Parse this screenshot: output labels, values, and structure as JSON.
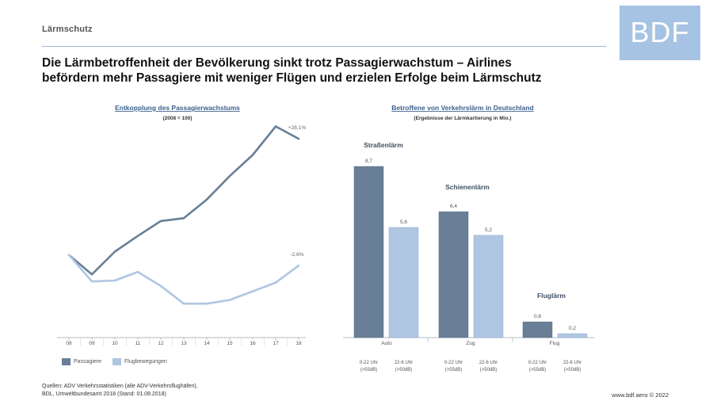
{
  "header": {
    "section_label": "Lärmschutz",
    "logo_text": "BDF",
    "headline_line1": "Die Lärmbetroffenheit der Bevölkerung sinkt trotz Passagierwachstum – Airlines",
    "headline_line2": "befördern mehr Passagiere mit weniger Flügen und erzielen Erfolge beim Lärmschutz"
  },
  "colors": {
    "passagiere": "#687f97",
    "flugbewegungen": "#afc6e2",
    "bar_dark": "#687f97",
    "bar_light": "#afc6e2",
    "title_link": "#3b5f8a",
    "axis": "#9aa3ad",
    "logo_bg": "#a7c3e4"
  },
  "chart_data": [
    {
      "type": "line",
      "title": "Entkopplung des Passagierwachstums",
      "subtitle": "(2008 = 100)",
      "categories": [
        "08",
        "09",
        "10",
        "11",
        "12",
        "13",
        "14",
        "15",
        "16",
        "17",
        "18"
      ],
      "series": [
        {
          "name": "Passagiere",
          "values": [
            100,
            95.3,
            100.8,
            104.6,
            108.2,
            108.9,
            113.4,
            119.1,
            124.2,
            131.1,
            128.1
          ]
        },
        {
          "name": "Flugbewegungen",
          "values": [
            100,
            93.6,
            93.8,
            95.9,
            92.5,
            88.2,
            88.2,
            89.1,
            91.2,
            93.3,
            97.4
          ]
        }
      ],
      "end_labels": {
        "Passagiere": "+28,1%",
        "Flugbewegungen": "-2,6%"
      },
      "ylim": [
        80,
        131
      ],
      "grid": false,
      "legend": "bottom-left"
    },
    {
      "type": "bar",
      "title": "Betroffene von Verkehrslärm in Deutschland",
      "subtitle": "(Ergebnisse der Lärmkartierung in Mio.)",
      "groups": [
        {
          "category": "Auto",
          "heading": "Straßenlärm",
          "bars": [
            {
              "label": "0-22 Uhr (>55dB)",
              "value": 8.7,
              "value_label": "8,7"
            },
            {
              "label": "22-6 Uhr (>50dB)",
              "value": 5.6,
              "value_label": "5,6"
            }
          ]
        },
        {
          "category": "Zug",
          "heading": "Schienenlärm",
          "bars": [
            {
              "label": "0-22 Uhr (>55dB)",
              "value": 6.4,
              "value_label": "6,4"
            },
            {
              "label": "22-6 Uhr (>50dB)",
              "value": 5.2,
              "value_label": "5,2"
            }
          ]
        },
        {
          "category": "Flug",
          "heading": "Fluglärm",
          "bars": [
            {
              "label": "0-22 Uhr (>55dB)",
              "value": 0.8,
              "value_label": "0,8"
            },
            {
              "label": "22-6 Uhr (>50dB)",
              "value": 0.2,
              "value_label": "0,2"
            }
          ]
        }
      ],
      "ylim": [
        0,
        9
      ],
      "grid": false
    }
  ],
  "legend": {
    "items": [
      {
        "label": "Passagiere"
      },
      {
        "label": "Flugbewegungen"
      }
    ]
  },
  "sources": {
    "line1": "Quellen: ADV Verkehrsstatistiken (alle ADV-Verkehrsflughäfen),",
    "line2": "BDL, Umweltbundesamt 2018 (Stand: 01.08.2018)"
  },
  "footer": {
    "text": "www.bdf.aero © 2022"
  }
}
